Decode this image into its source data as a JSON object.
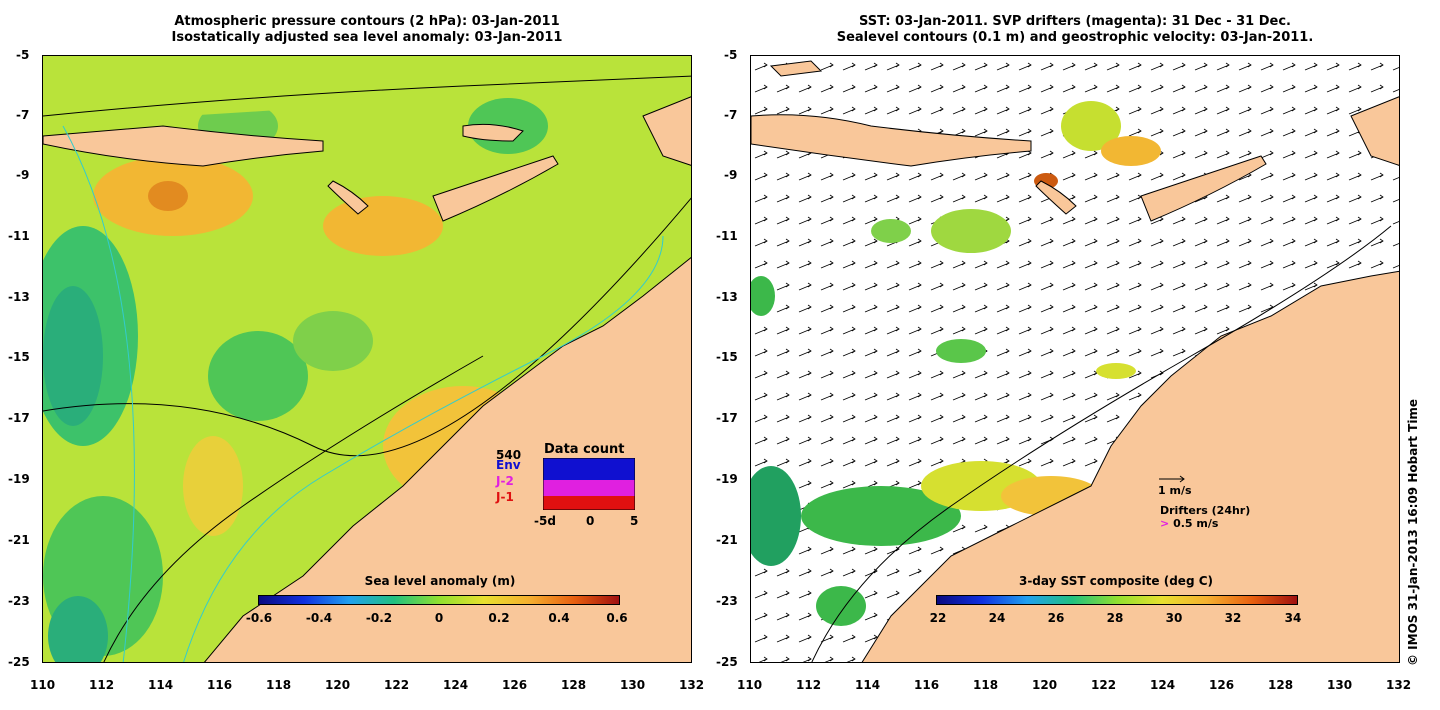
{
  "left": {
    "title_line1": "Atmospheric pressure contours (2 hPa): 03-Jan-2011",
    "title_line2": "Isostatically adjusted sea level anomaly: 03-Jan-2011",
    "colorbar_title": "Sea level anomaly (m)",
    "colorbar_ticks": [
      "-0.6",
      "-0.4",
      "-0.2",
      "0",
      "0.2",
      "0.4",
      "0.6"
    ],
    "inset": {
      "title": "Data count",
      "max_label": "540",
      "legend": [
        {
          "label": "Env",
          "color": "#1010d0"
        },
        {
          "label": "J-2",
          "color": "#e020e0"
        },
        {
          "label": "J-1",
          "color": "#e01010"
        }
      ],
      "x_ticks": [
        "-5d",
        "0",
        "5"
      ]
    }
  },
  "right": {
    "title_line1": "SST: 03-Jan-2011. SVP drifters (magenta): 31 Dec - 31 Dec.",
    "title_line2": "Sealevel contours (0.1 m) and geostrophic velocity: 03-Jan-2011.",
    "colorbar_title": "3-day SST composite (deg C)",
    "colorbar_ticks": [
      "22",
      "24",
      "26",
      "28",
      "30",
      "32",
      "34"
    ],
    "velocity_legend": "1 m/s",
    "drifter_legend_title": "Drifters (24hr)",
    "drifter_legend_value": "0.5 m/s",
    "drifter_legend_color": "#e020e0"
  },
  "axes": {
    "x_ticks": [
      "110",
      "112",
      "114",
      "116",
      "118",
      "120",
      "122",
      "124",
      "126",
      "128",
      "130",
      "132"
    ],
    "y_ticks": [
      "-5",
      "-7",
      "-9",
      "-11",
      "-13",
      "-15",
      "-17",
      "-19",
      "-21",
      "-23",
      "-25"
    ]
  },
  "colors": {
    "land": "#f9c79a",
    "ocean_left": "#b9e33a",
    "ocean_right": "#ffffff"
  },
  "credit": "© IMOS 31-Jan-2013 16:09 Hobart Time"
}
